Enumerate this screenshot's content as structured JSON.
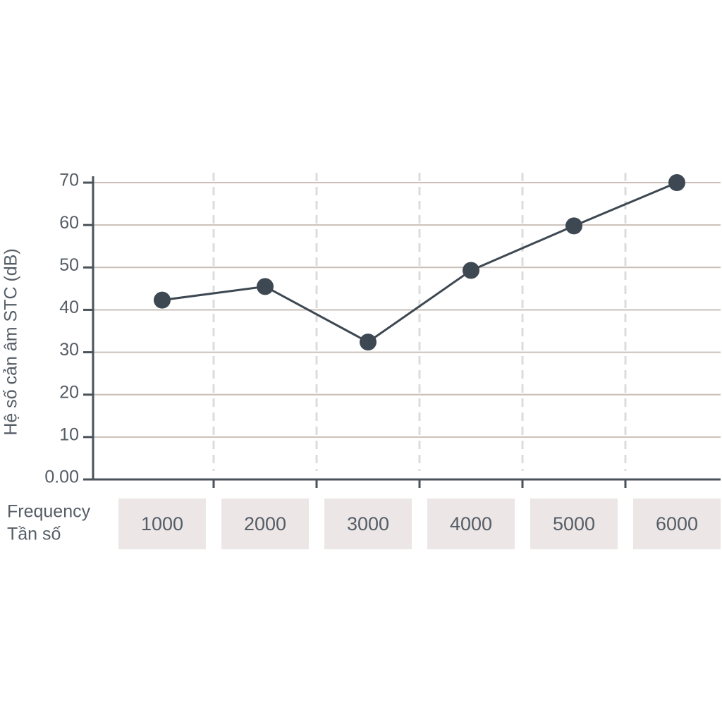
{
  "chart_data": {
    "type": "line",
    "y_label": "Hệ số cản âm STC (dB)",
    "x_label_lines": [
      "Frequency",
      "Tần số"
    ],
    "categories": [
      "1000",
      "2000",
      "3000",
      "4000",
      "5000",
      "6000"
    ],
    "series": [
      {
        "color": "#3d4852",
        "values": [
          42.3,
          45.5,
          32.4,
          49.3,
          59.8,
          70
        ]
      }
    ],
    "ylim": [
      0,
      71.5
    ],
    "yticks": [
      {
        "value": 0,
        "label": "0.00"
      },
      10,
      20,
      30,
      40,
      50,
      60,
      70
    ],
    "grid": true
  }
}
